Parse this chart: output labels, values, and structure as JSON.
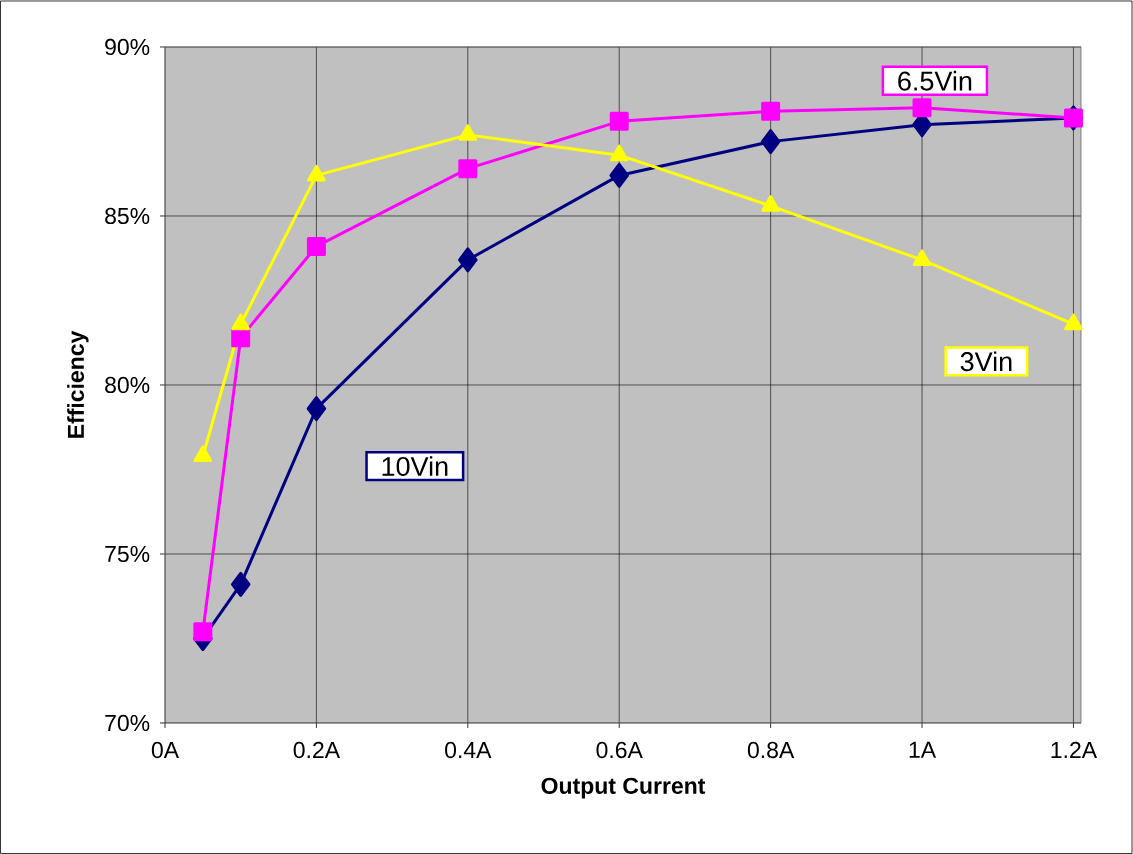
{
  "chart_data": {
    "type": "line",
    "xlabel": "Output Current",
    "ylabel": "Efficiency",
    "xlim": [
      0,
      1.21
    ],
    "ylim": [
      70,
      90
    ],
    "xticks": [
      {
        "value": 0,
        "label": "0A"
      },
      {
        "value": 0.2,
        "label": "0.2A"
      },
      {
        "value": 0.4,
        "label": "0.4A"
      },
      {
        "value": 0.6,
        "label": "0.6A"
      },
      {
        "value": 0.8,
        "label": "0.8A"
      },
      {
        "value": 1,
        "label": "1A"
      },
      {
        "value": 1.2,
        "label": "1.2A"
      }
    ],
    "yticks": [
      {
        "value": 70,
        "label": "70%"
      },
      {
        "value": 75,
        "label": "75%"
      },
      {
        "value": 80,
        "label": "80%"
      },
      {
        "value": 85,
        "label": "85%"
      },
      {
        "value": 90,
        "label": "90%"
      }
    ],
    "x": [
      0.05,
      0.1,
      0.2,
      0.4,
      0.6,
      0.8,
      1.0,
      1.2
    ],
    "grid": true,
    "legend": false,
    "line_style": "solid",
    "series": [
      {
        "name": "10Vin",
        "color": "#000080",
        "marker": "diamond",
        "values": [
          72.5,
          74.1,
          79.3,
          83.7,
          86.2,
          87.2,
          87.7,
          87.9
        ]
      },
      {
        "name": "6.5Vin",
        "color": "#ff00ff",
        "marker": "square",
        "values": [
          72.7,
          81.4,
          84.1,
          86.4,
          87.8,
          88.1,
          88.2,
          87.9
        ]
      },
      {
        "name": "3Vin",
        "color": "#ffff00",
        "marker": "triangle",
        "values": [
          77.9,
          81.8,
          86.2,
          87.4,
          86.8,
          85.3,
          83.7,
          81.8
        ]
      }
    ]
  }
}
